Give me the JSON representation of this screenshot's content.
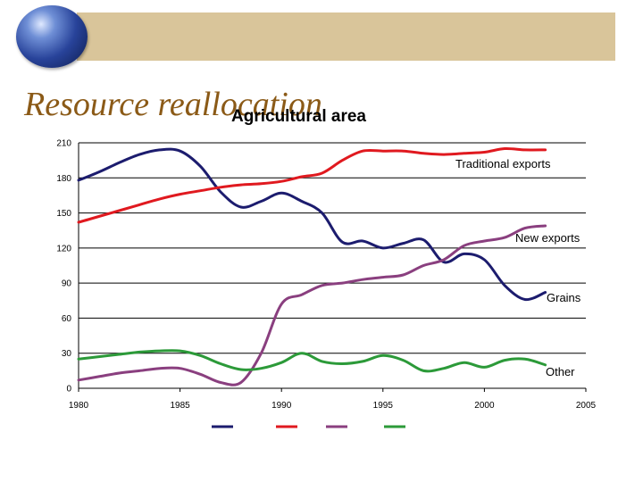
{
  "slide": {
    "title": "Resource reallocation"
  },
  "chart_data": {
    "type": "line",
    "title": "Agricultural area",
    "xlabel": "",
    "ylabel": "",
    "xlim": [
      1980,
      2005
    ],
    "ylim": [
      0,
      210
    ],
    "x_ticks": [
      1980,
      1985,
      1990,
      1995,
      2000,
      2005
    ],
    "y_ticks": [
      0,
      30,
      60,
      90,
      120,
      150,
      180,
      210
    ],
    "grid": "horizontal",
    "legend": "inline-labels",
    "x": [
      1980,
      1981,
      1982,
      1983,
      1984,
      1985,
      1986,
      1987,
      1988,
      1989,
      1990,
      1991,
      1992,
      1993,
      1994,
      1995,
      1996,
      1997,
      1998,
      1999,
      2000,
      2001,
      2002,
      2003
    ],
    "series": [
      {
        "name": "Grains",
        "color": "#1c1c6e",
        "values": [
          178,
          185,
          193,
          200,
          204,
          203,
          190,
          168,
          155,
          160,
          167,
          160,
          150,
          125,
          126,
          120,
          124,
          127,
          108,
          115,
          110,
          88,
          76,
          82
        ]
      },
      {
        "name": "Traditional exports",
        "color": "#e0191f",
        "values": [
          142,
          147,
          152,
          157,
          162,
          166,
          169,
          172,
          174,
          175,
          177,
          181,
          184,
          195,
          203,
          203,
          203,
          201,
          200,
          201,
          202,
          205,
          204,
          204
        ]
      },
      {
        "name": "New exports",
        "color": "#8a3f7f",
        "values": [
          7,
          10,
          13,
          15,
          17,
          17,
          12,
          5,
          5,
          30,
          72,
          80,
          88,
          90,
          93,
          95,
          97,
          105,
          110,
          122,
          126,
          129,
          137,
          139
        ]
      },
      {
        "name": "Other",
        "color": "#2c9a39",
        "values": [
          25,
          27,
          29,
          31,
          32,
          32,
          28,
          21,
          16,
          17,
          22,
          30,
          23,
          21,
          23,
          28,
          24,
          15,
          17,
          22,
          18,
          24,
          25,
          20
        ]
      }
    ]
  }
}
